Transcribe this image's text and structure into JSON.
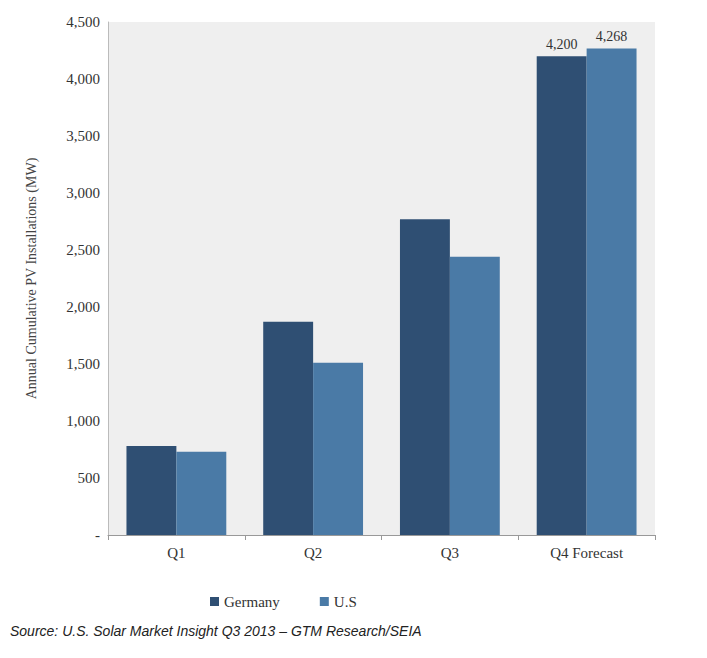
{
  "chart_data": {
    "type": "bar",
    "categories": [
      "Q1",
      "Q2",
      "Q3",
      "Q4 Forecast"
    ],
    "series": [
      {
        "name": "Germany",
        "color": "#2f4f73",
        "values": [
          780,
          1870,
          2770,
          4200
        ],
        "value_labels": [
          null,
          null,
          null,
          "4,200"
        ]
      },
      {
        "name": "U.S",
        "color": "#4a7aa6",
        "values": [
          730,
          1510,
          2440,
          4268
        ],
        "value_labels": [
          null,
          null,
          null,
          "4,268"
        ]
      }
    ],
    "ylabel": "Annual Cumulative PV Installations (MW)",
    "ylim": [
      0,
      4500
    ],
    "yticks": [
      {
        "value": 0,
        "label": "-"
      },
      500,
      {
        "value": 1000,
        "label": "1,000"
      },
      {
        "value": 1500,
        "label": "1,500"
      },
      {
        "value": 2000,
        "label": "2,000"
      },
      {
        "value": 2500,
        "label": "2,500"
      },
      {
        "value": 3000,
        "label": "3,000"
      },
      {
        "value": 3500,
        "label": "3,500"
      },
      {
        "value": 4000,
        "label": "4,000"
      },
      {
        "value": 4500,
        "label": "4,500"
      }
    ],
    "grid": false,
    "legend": "bottom",
    "data_labels": true,
    "annotation": "Source: U.S. Solar Market Insight Q3 2013 – GTM Research/SEIA"
  }
}
